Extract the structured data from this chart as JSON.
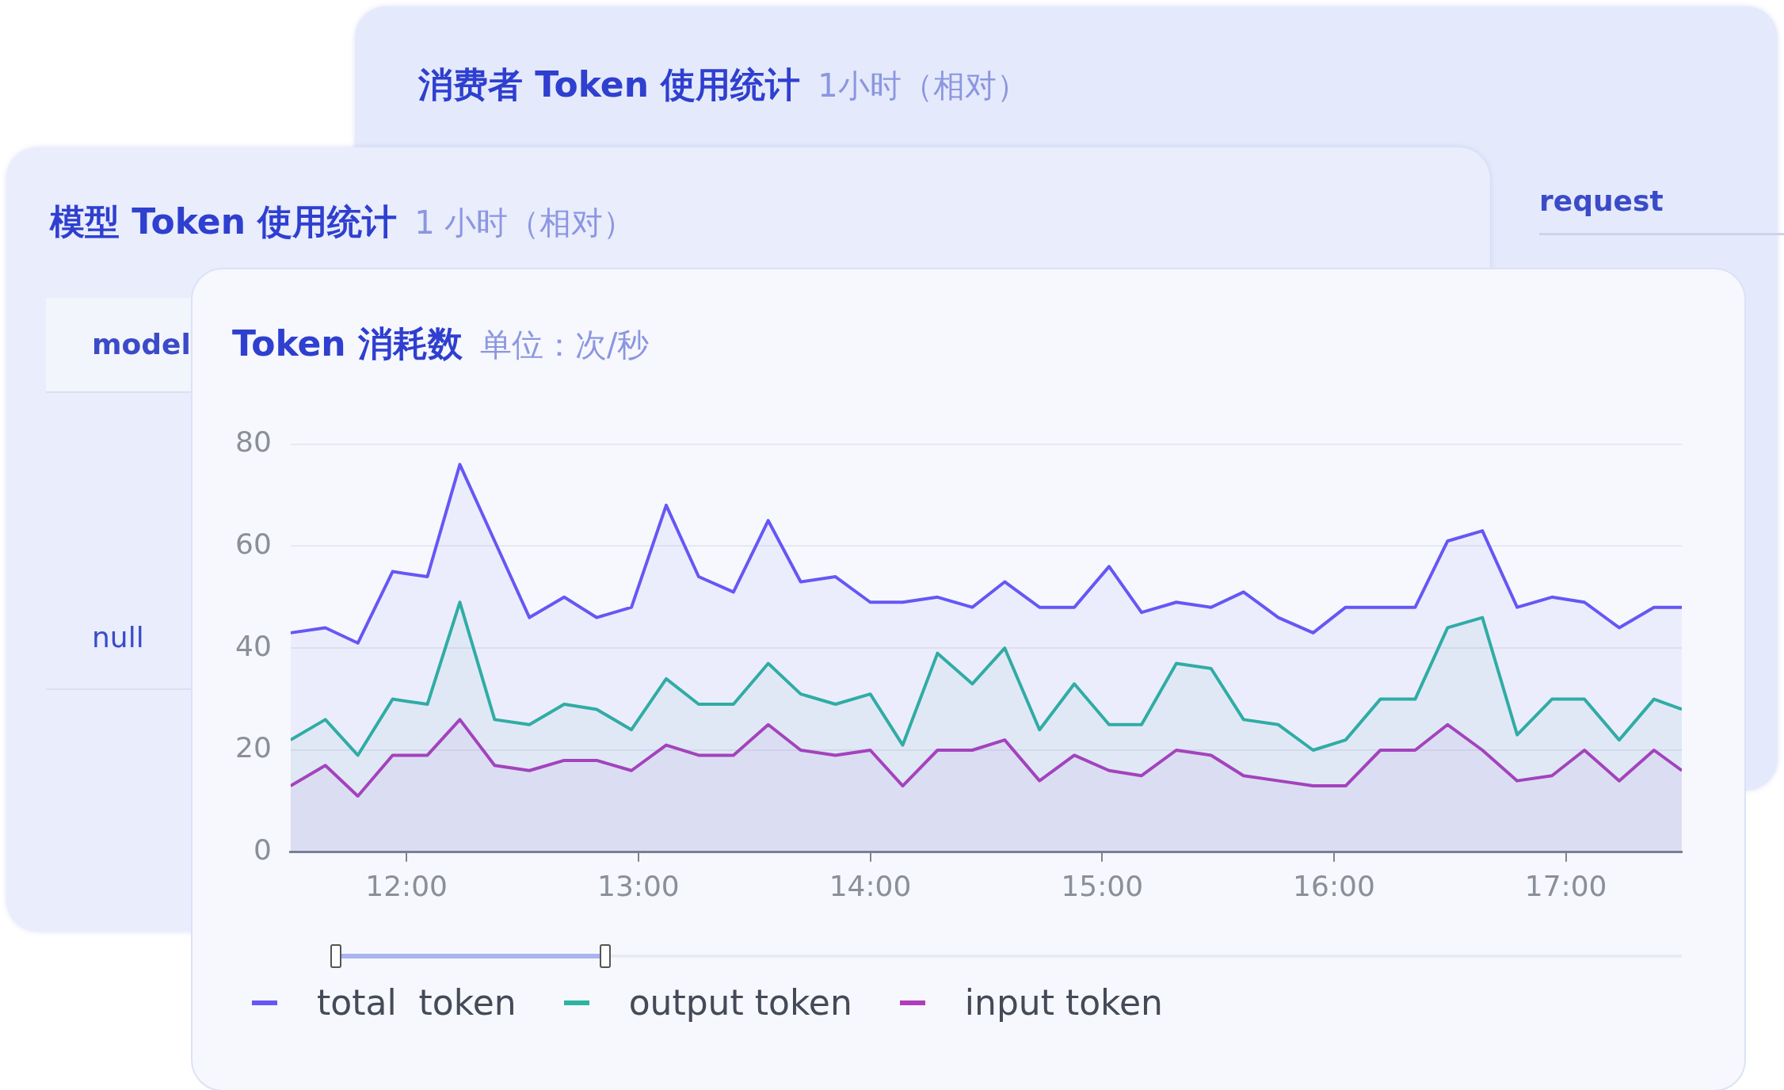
{
  "chart_data": [
    {
      "type": "other",
      "title": "消费者 Token 使用统计",
      "subtitle": "1小时（相对）",
      "annotations": [
        "request"
      ]
    },
    {
      "type": "other",
      "title": "模型 Token 使用统计",
      "subtitle": "1 小时（相对）",
      "annotations": [
        "model",
        "null"
      ]
    },
    {
      "type": "area",
      "title": "Token 消耗数",
      "subtitle": "单位：次/秒",
      "x": [
        11.5,
        11.65,
        11.79,
        11.94,
        12.09,
        12.23,
        12.38,
        12.53,
        12.68,
        12.82,
        12.97,
        13.12,
        13.26,
        13.41,
        13.56,
        13.7,
        13.85,
        14.0,
        14.14,
        14.29,
        14.44,
        14.58,
        14.73,
        14.88,
        15.03,
        15.17,
        15.32,
        15.47,
        15.61,
        15.76,
        15.91,
        16.05,
        16.2,
        16.35,
        16.49,
        16.64,
        16.79,
        16.94,
        17.08,
        17.23,
        17.38,
        17.5
      ],
      "series": [
        {
          "name": "total  token",
          "color": "#6657f5",
          "values": [
            43,
            44,
            41,
            55,
            54,
            76,
            61,
            46,
            50,
            46,
            48,
            68,
            54,
            51,
            65,
            53,
            54,
            49,
            49,
            50,
            48,
            53,
            48,
            48,
            56,
            47,
            49,
            48,
            51,
            46,
            43,
            48,
            48,
            48,
            61,
            63,
            48,
            50,
            49,
            44,
            48,
            48
          ]
        },
        {
          "name": "output token",
          "color": "#2db3a0",
          "values": [
            22,
            26,
            19,
            30,
            29,
            49,
            26,
            25,
            29,
            28,
            24,
            34,
            29,
            29,
            37,
            31,
            29,
            31,
            21,
            39,
            33,
            40,
            24,
            33,
            25,
            25,
            37,
            36,
            26,
            25,
            20,
            22,
            30,
            30,
            44,
            46,
            23,
            30,
            30,
            22,
            30,
            28
          ]
        },
        {
          "name": "input token",
          "color": "#b03cbc",
          "values": [
            13,
            17,
            11,
            19,
            19,
            26,
            17,
            16,
            18,
            18,
            16,
            21,
            19,
            19,
            25,
            20,
            19,
            20,
            13,
            20,
            20,
            22,
            14,
            19,
            16,
            15,
            20,
            19,
            15,
            14,
            13,
            13,
            20,
            20,
            25,
            20,
            14,
            15,
            20,
            14,
            20,
            16
          ]
        }
      ],
      "xlim": [
        11.5,
        17.5
      ],
      "xticks": [
        {
          "value": 12,
          "label": "12:00"
        },
        {
          "value": 13,
          "label": "13:00"
        },
        {
          "value": 14,
          "label": "14:00"
        },
        {
          "value": 15,
          "label": "15:00"
        },
        {
          "value": 16,
          "label": "16:00"
        },
        {
          "value": 17,
          "label": "17:00"
        }
      ],
      "ylim": [
        0,
        80
      ],
      "yticks": [
        0,
        20,
        40,
        60,
        80
      ],
      "grid": "y",
      "legend": "bottom left",
      "marker": "none"
    }
  ]
}
